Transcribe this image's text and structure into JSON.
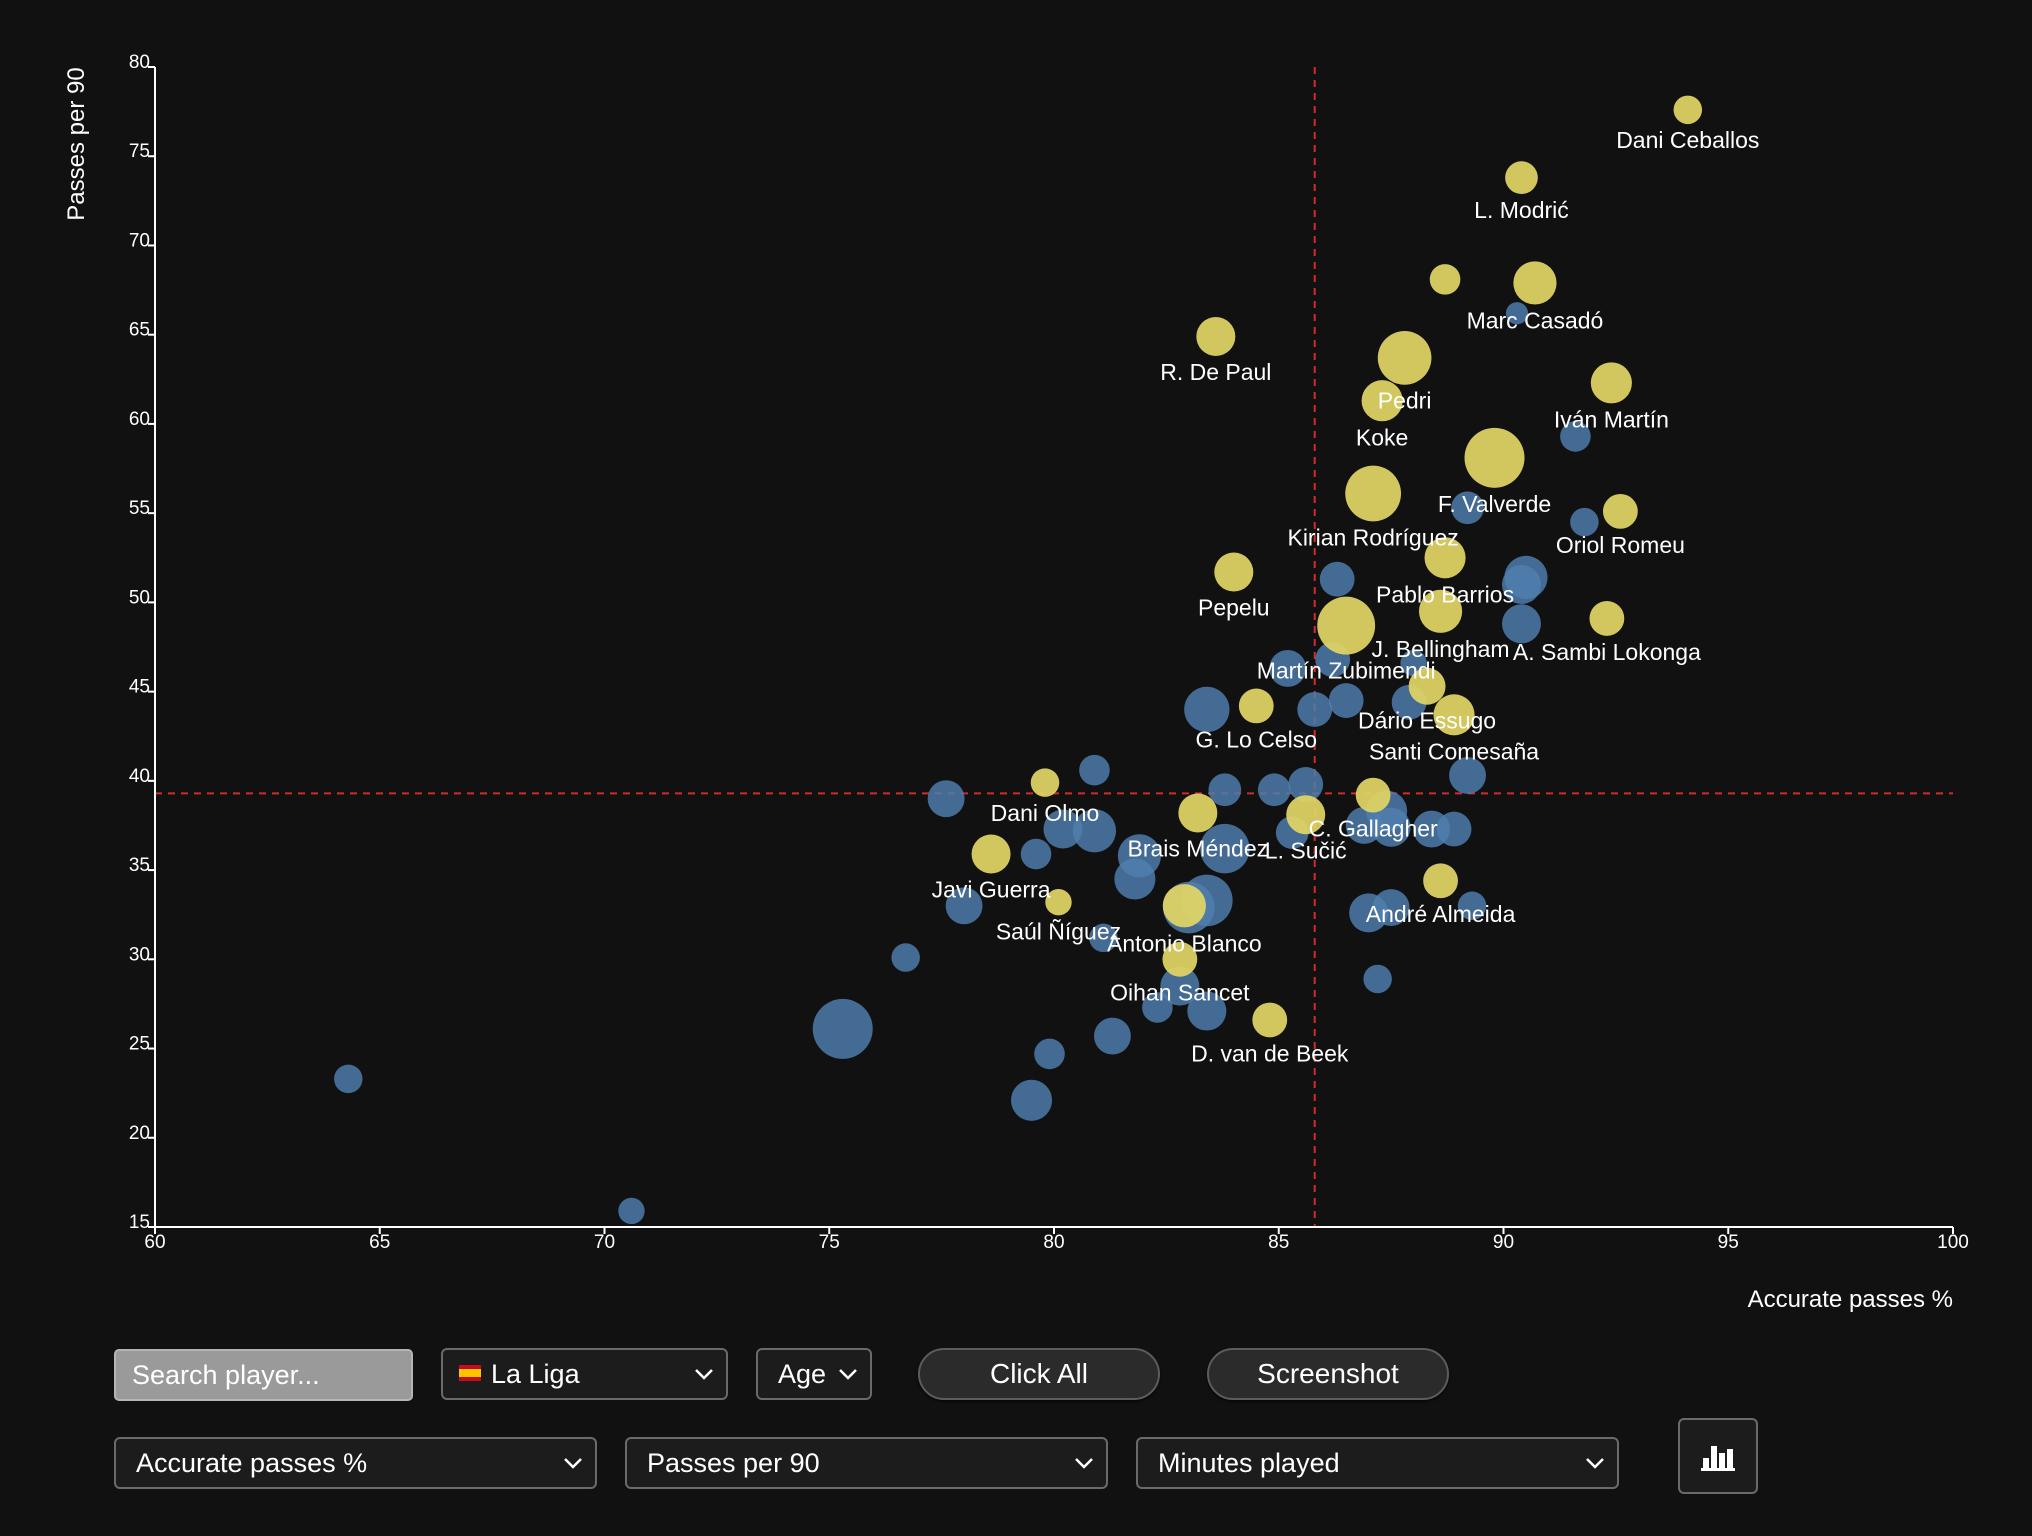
{
  "controls": {
    "search_placeholder": "Search player...",
    "league": "La Liga",
    "league_flag": "spain-flag-icon",
    "age_label": "Age",
    "click_all_label": "Click All",
    "screenshot_label": "Screenshot",
    "x_metric": "Accurate passes %",
    "y_metric": "Passes per 90",
    "size_metric": "Minutes played",
    "chart_icon": "bar-chart-icon"
  },
  "colors": {
    "background": "#111111",
    "highlight": "#e3d665",
    "other": "#4f7fb0",
    "median_line": "#d42a2a",
    "axis": "#ffffff"
  },
  "chart_data": {
    "type": "scatter",
    "title": "",
    "xlabel": "Accurate passes %",
    "ylabel": "Passes per 90",
    "xlim": [
      60,
      100
    ],
    "ylim": [
      15,
      80
    ],
    "xticks": [
      60,
      65,
      70,
      75,
      80,
      85,
      90,
      95,
      100
    ],
    "yticks": [
      15,
      20,
      25,
      30,
      35,
      40,
      45,
      50,
      55,
      60,
      65,
      70,
      75,
      80
    ],
    "median_x": 85.8,
    "median_y": 39.3,
    "highlighted": [
      {
        "name": "Dani Ceballos",
        "x": 94.1,
        "y": 77.6,
        "size": 0.25
      },
      {
        "name": "L. Modrić",
        "x": 90.4,
        "y": 73.8,
        "size": 0.35
      },
      {
        "name": "",
        "x": 88.7,
        "y": 68.1,
        "size": 0.3
      },
      {
        "name": "Marc Casadó",
        "x": 90.7,
        "y": 67.9,
        "size": 0.6
      },
      {
        "name": "R. De Paul",
        "x": 83.6,
        "y": 64.9,
        "size": 0.5
      },
      {
        "name": "Pedri",
        "x": 87.8,
        "y": 63.7,
        "size": 0.85
      },
      {
        "name": "Koke",
        "x": 87.3,
        "y": 61.3,
        "size": 0.55
      },
      {
        "name": "Iván Martín",
        "x": 92.4,
        "y": 62.3,
        "size": 0.55
      },
      {
        "name": "F. Valverde",
        "x": 89.8,
        "y": 58.1,
        "size": 1.0
      },
      {
        "name": "Kirian Rodríguez",
        "x": 87.1,
        "y": 56.1,
        "size": 0.9
      },
      {
        "name": "Oriol Romeu",
        "x": 92.6,
        "y": 55.1,
        "size": 0.4
      },
      {
        "name": "Pablo Barrios",
        "x": 88.7,
        "y": 52.5,
        "size": 0.55
      },
      {
        "name": "Pepelu",
        "x": 84.0,
        "y": 51.7,
        "size": 0.5
      },
      {
        "name": "J. Bellingham",
        "x": 88.6,
        "y": 49.5,
        "size": 0.6
      },
      {
        "name": "Martín Zubimendi",
        "x": 86.5,
        "y": 48.7,
        "size": 0.95
      },
      {
        "name": "A. Sambi Lokonga",
        "x": 92.3,
        "y": 49.1,
        "size": 0.4
      },
      {
        "name": "Dário Essugo",
        "x": 88.3,
        "y": 45.3,
        "size": 0.45
      },
      {
        "name": "Santi Comesaña",
        "x": 88.9,
        "y": 43.7,
        "size": 0.55
      },
      {
        "name": "G. Lo Celso",
        "x": 84.5,
        "y": 44.2,
        "size": 0.4
      },
      {
        "name": "Dani Olmo",
        "x": 79.8,
        "y": 39.9,
        "size": 0.25
      },
      {
        "name": "C. Gallagher",
        "x": 87.1,
        "y": 39.2,
        "size": 0.4
      },
      {
        "name": "Brais Méndez",
        "x": 83.2,
        "y": 38.2,
        "size": 0.5
      },
      {
        "name": "L. Sučić",
        "x": 85.6,
        "y": 38.1,
        "size": 0.5
      },
      {
        "name": "Javi Guerra",
        "x": 78.6,
        "y": 35.9,
        "size": 0.5
      },
      {
        "name": "André Almeida",
        "x": 88.6,
        "y": 34.4,
        "size": 0.4
      },
      {
        "name": "Saúl Ñíguez",
        "x": 80.1,
        "y": 33.2,
        "size": 0.2
      },
      {
        "name": "Antonio Blanco",
        "x": 82.9,
        "y": 33.0,
        "size": 0.6
      },
      {
        "name": "Oihan Sancet",
        "x": 82.8,
        "y": 30.0,
        "size": 0.4
      },
      {
        "name": "D. van de Beek",
        "x": 84.8,
        "y": 26.6,
        "size": 0.4
      }
    ],
    "others": [
      {
        "x": 64.3,
        "y": 23.3,
        "size": 0.25
      },
      {
        "x": 70.6,
        "y": 15.9,
        "size": 0.2
      },
      {
        "x": 75.3,
        "y": 26.1,
        "size": 1.0
      },
      {
        "x": 76.7,
        "y": 30.1,
        "size": 0.25
      },
      {
        "x": 77.6,
        "y": 39.0,
        "size": 0.45
      },
      {
        "x": 78.0,
        "y": 33.0,
        "size": 0.45
      },
      {
        "x": 79.6,
        "y": 35.9,
        "size": 0.3
      },
      {
        "x": 79.5,
        "y": 22.1,
        "size": 0.55
      },
      {
        "x": 79.9,
        "y": 24.7,
        "size": 0.3
      },
      {
        "x": 80.2,
        "y": 37.3,
        "size": 0.5
      },
      {
        "x": 80.9,
        "y": 37.2,
        "size": 0.6
      },
      {
        "x": 80.9,
        "y": 40.6,
        "size": 0.3
      },
      {
        "x": 81.1,
        "y": 31.2,
        "size": 0.25
      },
      {
        "x": 81.3,
        "y": 25.7,
        "size": 0.45
      },
      {
        "x": 81.8,
        "y": 34.5,
        "size": 0.55
      },
      {
        "x": 81.9,
        "y": 35.8,
        "size": 0.6
      },
      {
        "x": 82.3,
        "y": 27.3,
        "size": 0.3
      },
      {
        "x": 82.8,
        "y": 28.5,
        "size": 0.5
      },
      {
        "x": 83.0,
        "y": 32.9,
        "size": 0.8
      },
      {
        "x": 83.4,
        "y": 27.1,
        "size": 0.5
      },
      {
        "x": 83.4,
        "y": 33.3,
        "size": 0.8
      },
      {
        "x": 83.4,
        "y": 44.0,
        "size": 0.65
      },
      {
        "x": 83.8,
        "y": 36.2,
        "size": 0.75
      },
      {
        "x": 83.8,
        "y": 39.5,
        "size": 0.35
      },
      {
        "x": 84.9,
        "y": 39.5,
        "size": 0.35
      },
      {
        "x": 85.2,
        "y": 46.3,
        "size": 0.45
      },
      {
        "x": 85.3,
        "y": 37.1,
        "size": 0.35
      },
      {
        "x": 85.6,
        "y": 39.8,
        "size": 0.4
      },
      {
        "x": 85.8,
        "y": 44.0,
        "size": 0.4
      },
      {
        "x": 86.2,
        "y": 46.8,
        "size": 0.4
      },
      {
        "x": 86.3,
        "y": 51.3,
        "size": 0.4
      },
      {
        "x": 86.5,
        "y": 44.5,
        "size": 0.4
      },
      {
        "x": 86.9,
        "y": 37.5,
        "size": 0.45
      },
      {
        "x": 87.0,
        "y": 32.6,
        "size": 0.5
      },
      {
        "x": 87.2,
        "y": 28.9,
        "size": 0.25
      },
      {
        "x": 87.4,
        "y": 38.3,
        "size": 0.55
      },
      {
        "x": 87.5,
        "y": 37.4,
        "size": 0.5
      },
      {
        "x": 87.5,
        "y": 32.9,
        "size": 0.45
      },
      {
        "x": 87.9,
        "y": 44.4,
        "size": 0.4
      },
      {
        "x": 88.0,
        "y": 46.6,
        "size": 0.2
      },
      {
        "x": 88.4,
        "y": 37.3,
        "size": 0.45
      },
      {
        "x": 88.9,
        "y": 37.3,
        "size": 0.4
      },
      {
        "x": 89.2,
        "y": 40.3,
        "size": 0.45
      },
      {
        "x": 89.2,
        "y": 55.3,
        "size": 0.35
      },
      {
        "x": 89.3,
        "y": 33.0,
        "size": 0.25
      },
      {
        "x": 90.3,
        "y": 66.2,
        "size": 0.1
      },
      {
        "x": 90.4,
        "y": 51.0,
        "size": 0.5
      },
      {
        "x": 90.4,
        "y": 48.8,
        "size": 0.5
      },
      {
        "x": 90.5,
        "y": 51.4,
        "size": 0.6
      },
      {
        "x": 91.6,
        "y": 59.3,
        "size": 0.3
      },
      {
        "x": 91.8,
        "y": 54.5,
        "size": 0.25
      }
    ]
  }
}
